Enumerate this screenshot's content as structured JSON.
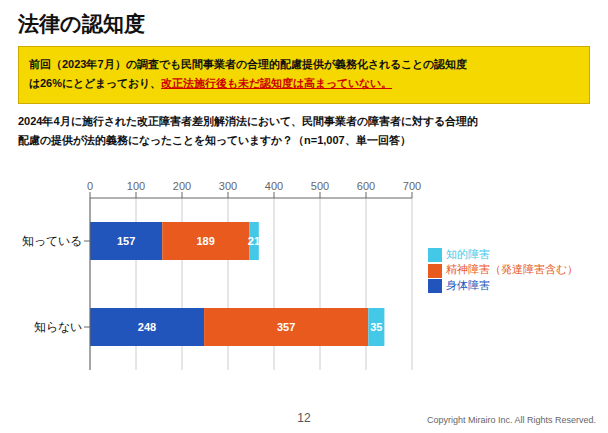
{
  "chart_data": {
    "type": "bar",
    "orientation": "horizontal",
    "stacked": true,
    "data_labels": true,
    "grid": true,
    "legend": "right",
    "title": "法律の認知度",
    "subtitle": [
      "2024年4月に施行された改正障害者差別解消法において、民間事業者の障害者に対する合理的",
      "配慮の提供が法的義務になったことを知っていますか？（n=1,007、単一回答）"
    ],
    "annotations": [
      {
        "text": "前回（2023年7月）の調査でも民間事業者の合理的配慮提供が義務化されることの認知度"
      },
      {
        "text": "は26%にとどまっており、"
      },
      {
        "text": "改正法施行後も未だ認知度は高まっていない。",
        "color": "#cc0000"
      },
      {
        "text": "12"
      },
      {
        "text": "Copyright Mirairo Inc. All Rights Reserved."
      }
    ],
    "categories": [
      "知っている",
      "知らない"
    ],
    "series": [
      {
        "name": "身体障害",
        "values": [
          157,
          248
        ],
        "color": "#2255bb"
      },
      {
        "name": "精神障害（発達障害含む）",
        "values": [
          189,
          357
        ],
        "color": "#e85a1e"
      },
      {
        "name": "知的障害",
        "values": [
          21,
          35
        ],
        "color": "#44c8e8"
      }
    ],
    "xlim": [
      0,
      700
    ],
    "xticks": [
      0,
      100,
      200,
      300,
      400,
      500,
      600,
      700
    ]
  }
}
